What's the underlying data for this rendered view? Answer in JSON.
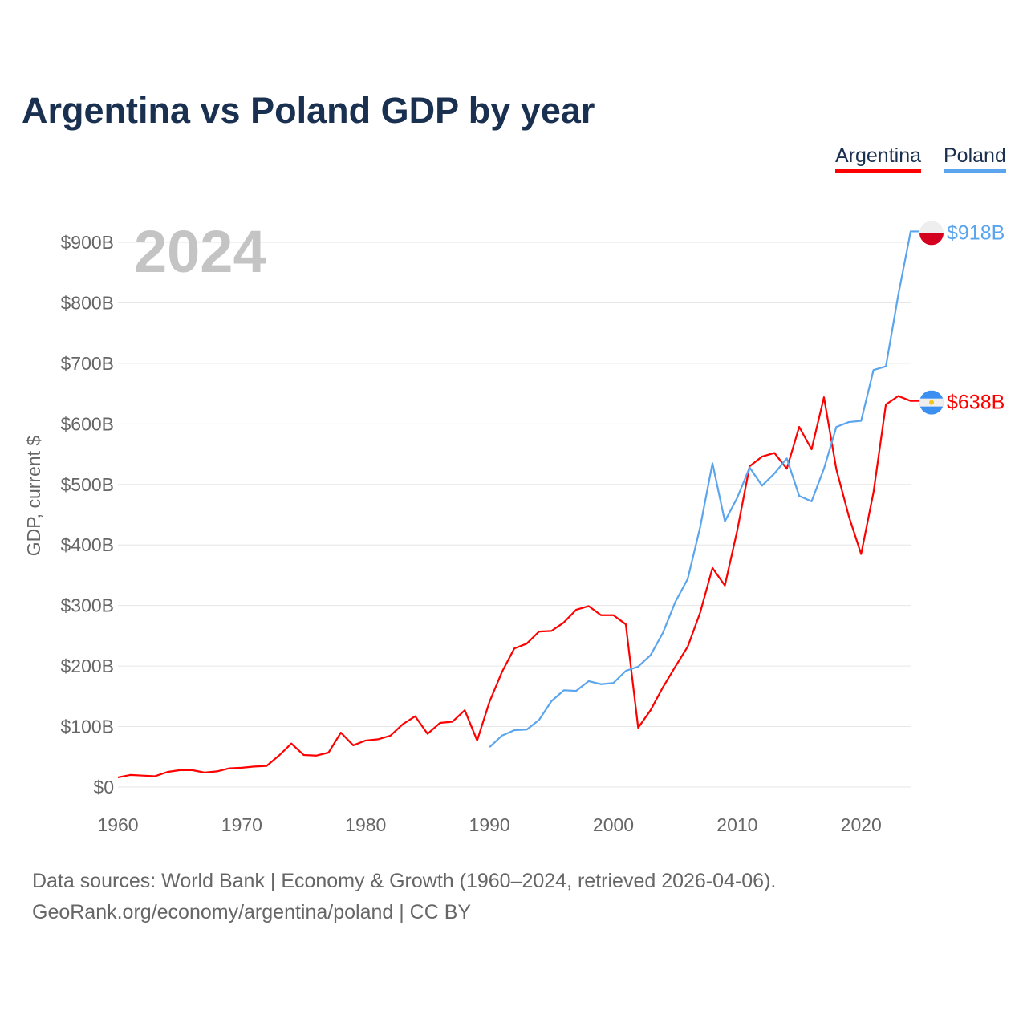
{
  "title": "Argentina vs Poland GDP by year",
  "year_label": "2024",
  "footer": {
    "line1": "Data sources: World Bank | Economy & Growth (1960–2024, retrieved 2026-04-06).",
    "line2": "GeoRank.org/economy/argentina/poland | CC BY"
  },
  "chart_data": {
    "type": "line",
    "title": "Argentina vs Poland GDP by year",
    "xlabel": "",
    "ylabel": "GDP, current $",
    "xlim": [
      1960,
      2024
    ],
    "ylim": [
      0,
      900
    ],
    "x_ticks": [
      1960,
      1970,
      1980,
      1990,
      2000,
      2010,
      2020
    ],
    "y_ticks": [
      0,
      100,
      200,
      300,
      400,
      500,
      600,
      700,
      800,
      900
    ],
    "y_tick_labels": [
      "$0",
      "$100B",
      "$200B",
      "$300B",
      "$400B",
      "$500B",
      "$600B",
      "$700B",
      "$800B",
      "$900B"
    ],
    "grid": true,
    "legend_position": "top-right",
    "series": [
      {
        "name": "Argentina",
        "color": "#ff0000",
        "end_label": "$638B",
        "flag": "argentina-flag",
        "start_year": 1960,
        "values": [
          16,
          20,
          19,
          18,
          25,
          28,
          28,
          24,
          26,
          31,
          32,
          34,
          35,
          52,
          72,
          53,
          52,
          57,
          90,
          69,
          77,
          79,
          85,
          104,
          117,
          88,
          106,
          108,
          127,
          77,
          141,
          190,
          229,
          237,
          257,
          258,
          272,
          293,
          299,
          284,
          284,
          269,
          98,
          127,
          165,
          199,
          232,
          288,
          362,
          333,
          424,
          530,
          546,
          552,
          526,
          595,
          558,
          644,
          525,
          448,
          385,
          487,
          632,
          646,
          638
        ]
      },
      {
        "name": "Poland",
        "color": "#5aa5ee",
        "end_label": "$918B",
        "flag": "poland-flag",
        "start_year": 1990,
        "values": [
          66,
          85,
          94,
          95,
          111,
          142,
          160,
          159,
          175,
          170,
          172,
          192,
          199,
          218,
          255,
          306,
          344,
          429,
          535,
          439,
          478,
          528,
          498,
          518,
          543,
          481,
          472,
          526,
          595,
          603,
          605,
          689,
          695,
          813,
          918
        ]
      }
    ]
  }
}
